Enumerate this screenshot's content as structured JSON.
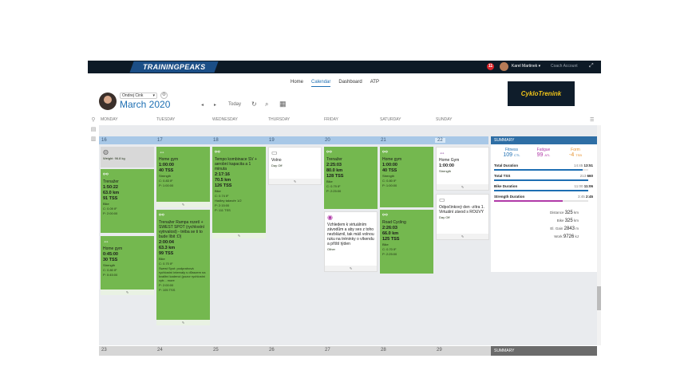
{
  "app": {
    "logo": "TRAININGPEAKS",
    "notifications": "11",
    "user_name": "Karel Martinek ▾",
    "coach_account": "Coach Account",
    "expand": "⤢"
  },
  "nav": {
    "tabs": [
      "Home",
      "Calendar",
      "Dashboard",
      "ATP"
    ],
    "active": "Calendar"
  },
  "athlete": {
    "name": "Ondrej Cink",
    "month": "March 2020",
    "today": "Today"
  },
  "controls": {
    "prev": "◂",
    "next": "▸",
    "refresh": "↻",
    "search": "⌕",
    "calendar_icon": "▦"
  },
  "brand_box": "CykloTrenink",
  "weekdays": [
    "MONDAY",
    "TUESDAY",
    "WEDNESDAY",
    "THURSDAY",
    "FRIDAY",
    "SATURDAY",
    "SUNDAY"
  ],
  "week1_dates": [
    "16",
    "17",
    "18",
    "19",
    "20",
    "21",
    "22"
  ],
  "week2_dates": [
    "23",
    "24",
    "25",
    "26",
    "27",
    "28",
    "29"
  ],
  "colors": {
    "workout_green": "#74b84f",
    "header_blue": "#a8c8e7",
    "summary_blue": "#2e6ea5",
    "fitness": "#1e6fb3",
    "fatigue": "#b03aa8",
    "form": "#e6922d"
  },
  "summary": {
    "label": "SUMMARY",
    "fitness": {
      "label": "Fitness",
      "value": "109",
      "unit": "CTL"
    },
    "fatigue": {
      "label": "Fatigue",
      "value": "99",
      "unit": "ATL"
    },
    "form": {
      "label": "Form",
      "value": "-4",
      "unit": "TSB"
    },
    "rows": [
      {
        "label": "Total Duration",
        "plan": "14:45",
        "actual": "13:51",
        "color": "#1e6fb3",
        "fraction": 0.94
      },
      {
        "label": "Total TSS",
        "plan": "213",
        "actual": "660",
        "color": "#1e6fb3",
        "fraction": 1.0
      },
      {
        "label": "Bike Duration",
        "plan": "11:00",
        "actual": "11:06",
        "color": "#1e6fb3",
        "fraction": 1.0
      },
      {
        "label": "Strength Duration",
        "plan": "3:45",
        "actual": "2:45",
        "color": "#b03aa8",
        "fraction": 0.73
      }
    ],
    "stats": [
      {
        "label": "Distance",
        "value": "325",
        "unit": "km"
      },
      {
        "label": "Bike",
        "value": "325",
        "unit": "km"
      },
      {
        "label": "El. Gain",
        "value": "2843",
        "unit": "m"
      },
      {
        "label": "Work",
        "value": "9726",
        "unit": "kJ"
      }
    ],
    "label2": "SUMMARY"
  },
  "cards": {
    "mon_weight": {
      "text": "Weight: 96.8 kg"
    },
    "mon_trenazer": {
      "title": "Trenažer",
      "l1": "1:50:22",
      "l2": "63.0 km",
      "l3": "91 TSS",
      "s1": "Bike",
      "s2": "C: 0.09 IF",
      "s3": "P: 2:00:00"
    },
    "mon_gym": {
      "title": "Home gym",
      "l1": "0:45:00",
      "l2": "30 TSS",
      "s1": "Strength",
      "s2": "C: 0.80 IF",
      "s3": "P: 0:45:00"
    },
    "tue_gym": {
      "title": "Home gym",
      "l1": "1:00:00",
      "l2": "40 TSS",
      "s1": "Strength",
      "s2": "C: 0.83 IF",
      "s3": "P: 1:00:00"
    },
    "tue_trenazer": {
      "title": "Trenažer Rampa rozetí + SWEST SPOT (rychlostní vytrvalost) - tréba se ti to bude líbit :D)",
      "l1": "2:00:04",
      "l2": "63.3 km",
      "l3": "99 TSS",
      "s1": "Bike",
      "s2": "C: 0.70 IF",
      "s3": "Swest Spot: podprahová rychlostní intervaly s důrazem na kvalitní kadenci (pozor rychlostní vytr... more",
      "s4": "P: 2:00:00",
      "s5": "P: 105 TSS"
    },
    "wed_tempo": {
      "title": "Tempo kombinace SV + aerobní kapacita a 1 minuta",
      "l1": "2:17:16",
      "l2": "70.5 km",
      "l3": "126 TSS",
      "s1": "Bike",
      "s2": "C: 0.74 IF",
      "s3": "Hadley takeoře 1/2",
      "s4": "P: 2:15:00",
      "s5": "P: 111 TSS"
    },
    "thu_volno": {
      "title": "Volno",
      "s1": "Day Off"
    },
    "fri_trenazer": {
      "title": "Trenažer",
      "l1": "2:25:03",
      "l2": "80.0 km",
      "l3": "128 TSS",
      "s1": "Bike",
      "s2": "C: 0.79 IF",
      "s3": "P: 2:25:00"
    },
    "fri_note": {
      "title": "Vzhledem k virtuálním závodům a aby ses z toho nezbláznil, tak máš volnou ruku na tréninky o víkendu a příští týden",
      "s1": "Other"
    },
    "sat_gym": {
      "title": "Home gym",
      "l1": "1:00:00",
      "l2": "40 TSS",
      "s1": "Strength",
      "s2": "C: 0.80 IF",
      "s3": "P: 1:00:00"
    },
    "sat_road": {
      "title": "Road Cycling",
      "l1": "2:26:03",
      "l2": "66.0 km",
      "l3": "125 TSS",
      "s1": "Bike",
      "s2": "C: 0.70 IF",
      "s3": "P: 2:25:00"
    },
    "sun_gym": {
      "title": "Home Gym",
      "l1": "1:00:00",
      "s1": "Strength"
    },
    "sun_rest": {
      "title": "Odpočinkový den -zítra 1. Virtuální závod s ROUVY",
      "s1": "Day Off"
    }
  }
}
